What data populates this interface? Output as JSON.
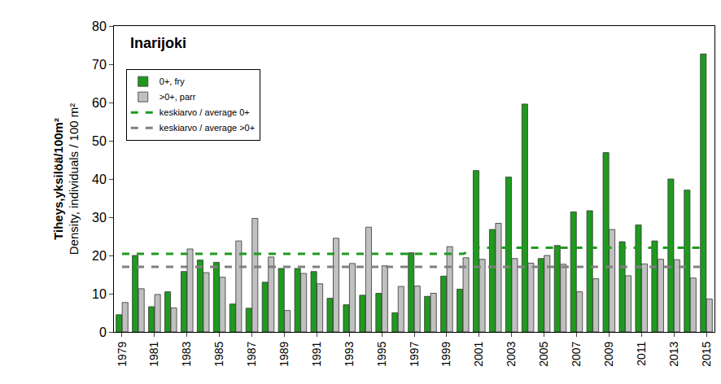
{
  "chart_data": {
    "type": "bar",
    "title": "Inarijoki",
    "ylabel": [
      "Tiheys,yksilöä/100m²",
      "Density, individuals / 100 m²"
    ],
    "categories": [
      "1979",
      null,
      "1981",
      null,
      "1983",
      null,
      "1985",
      null,
      "1987",
      null,
      "1989",
      null,
      "1991",
      null,
      "1993",
      null,
      "1995",
      null,
      "1997",
      null,
      "1999",
      null,
      "2001",
      null,
      "2003",
      null,
      "2005",
      null,
      "2007",
      null,
      "2009",
      null,
      "2011",
      null,
      "2013",
      null,
      "2015"
    ],
    "series": [
      {
        "name": "0+, fry",
        "type": "bar",
        "color": "#1f9a1f",
        "values": [
          4.5,
          20,
          6.6,
          10.5,
          15.8,
          18.8,
          18.2,
          7.3,
          6.2,
          13,
          16.6,
          16.6,
          15.8,
          8.8,
          7.1,
          9.6,
          10.1,
          5,
          20.7,
          9.3,
          14.6,
          11.2,
          42.2,
          26.8,
          40.5,
          59.6,
          19.2,
          22.6,
          31.4,
          31.7,
          46.9,
          23.6,
          28,
          23.8,
          40,
          37.1,
          72.7
        ]
      },
      {
        "name": ">0+, parr",
        "type": "bar",
        "color": "#c0c0c0",
        "values": [
          7.7,
          11.3,
          9.8,
          6.3,
          21.7,
          15.5,
          14.3,
          23.8,
          29.7,
          19.6,
          5.6,
          15.3,
          12.6,
          24.5,
          17.9,
          27.4,
          17.3,
          11.9,
          12,
          10.1,
          22.3,
          19.4,
          19,
          28.4,
          19.2,
          18,
          20,
          17.7,
          10.5,
          13.9,
          26.8,
          14.7,
          17.8,
          19,
          18.9,
          14.1,
          8.6
        ]
      },
      {
        "name": "keskiarvo / average 0+",
        "type": "line",
        "line_style": "dashed",
        "color": "#1f9a1f",
        "values": [
          20.4,
          20.4,
          20.4,
          20.4,
          20.4,
          20.4,
          20.4,
          20.4,
          20.4,
          20.4,
          20.4,
          20.4,
          20.4,
          20.4,
          20.4,
          20.4,
          20.4,
          20.4,
          20.4,
          20.4,
          20.4,
          20.4,
          22,
          22,
          22,
          22,
          22,
          22,
          22,
          22,
          22,
          22,
          22,
          22,
          22,
          22,
          22
        ]
      },
      {
        "name": "keskiarvo / average >0+",
        "type": "line",
        "line_style": "dashed",
        "color": "#808080",
        "values": [
          17,
          17,
          17,
          17,
          17,
          17,
          17,
          17,
          17,
          17,
          17,
          17,
          17,
          17,
          17,
          17,
          17,
          17,
          17,
          17,
          17,
          17,
          17,
          17,
          17,
          17,
          17,
          17,
          17,
          17,
          17,
          17,
          17,
          17,
          17,
          17,
          17
        ]
      }
    ],
    "ylim": [
      0,
      80
    ],
    "yticks": [
      0,
      10,
      20,
      30,
      40,
      50,
      60,
      70,
      80
    ],
    "grid": false,
    "legend": "top-left"
  }
}
